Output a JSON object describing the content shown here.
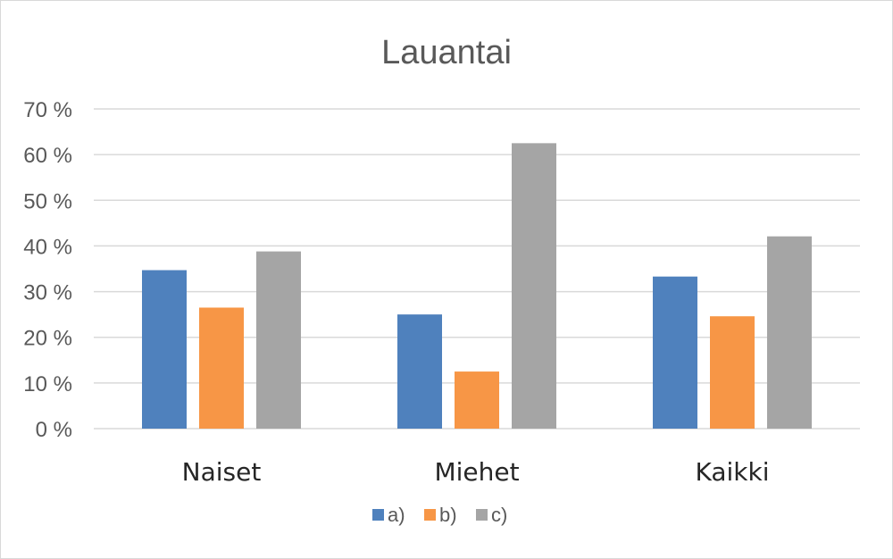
{
  "chart_data": {
    "type": "bar",
    "title": "Lauantai",
    "categories": [
      "Naiset",
      "Miehet",
      "Kaikki"
    ],
    "series": [
      {
        "name": "a)",
        "color": "#4f81bd",
        "values": [
          34.7,
          25.0,
          33.3
        ]
      },
      {
        "name": "b)",
        "color": "#f79646",
        "values": [
          26.5,
          12.5,
          24.6
        ]
      },
      {
        "name": "c)",
        "color": "#a5a5a5",
        "values": [
          38.8,
          62.5,
          42.1
        ]
      }
    ],
    "ylim": [
      0,
      70
    ],
    "yticks": [
      "0 %",
      "10 %",
      "20 %",
      "30 %",
      "40 %",
      "50 %",
      "60 %",
      "70 %"
    ],
    "grid": true,
    "legend_position": "bottom"
  }
}
